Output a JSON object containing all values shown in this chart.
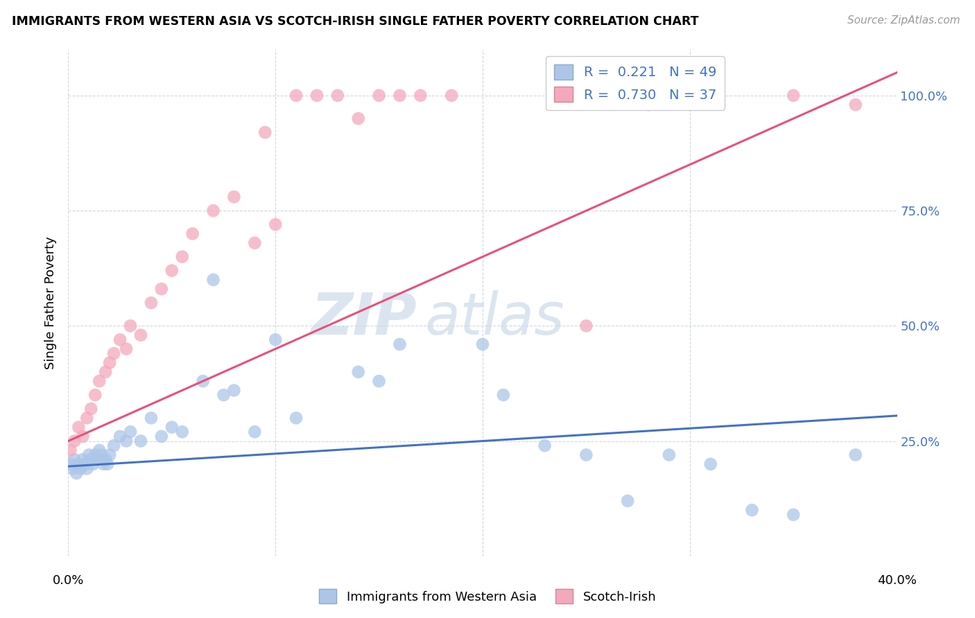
{
  "title": "IMMIGRANTS FROM WESTERN ASIA VS SCOTCH-IRISH SINGLE FATHER POVERTY CORRELATION CHART",
  "source": "Source: ZipAtlas.com",
  "ylabel": "Single Father Poverty",
  "xlim": [
    0.0,
    0.4
  ],
  "ylim": [
    0.0,
    1.1
  ],
  "blue_color": "#adc6e8",
  "pink_color": "#f4a8bc",
  "blue_line_color": "#4472c4",
  "pink_line_color": "#e8507a",
  "watermark_zip": "ZIP",
  "watermark_atlas": "atlas",
  "legend_blue_label": "R =  0.221   N = 49",
  "legend_pink_label": "R =  0.730   N = 37",
  "legend_label_blue": "Immigrants from Western Asia",
  "legend_label_pink": "Scotch-Irish",
  "blue_line_x0": 0.0,
  "blue_line_y0": 0.195,
  "blue_line_x1": 0.4,
  "blue_line_y1": 0.305,
  "pink_line_x0": 0.0,
  "pink_line_y0": 0.25,
  "pink_line_x1": 0.4,
  "pink_line_y1": 1.05,
  "blue_scatter_x": [
    0.001,
    0.002,
    0.003,
    0.004,
    0.005,
    0.006,
    0.007,
    0.008,
    0.009,
    0.01,
    0.011,
    0.012,
    0.013,
    0.014,
    0.015,
    0.016,
    0.017,
    0.018,
    0.019,
    0.02,
    0.022,
    0.025,
    0.028,
    0.03,
    0.035,
    0.04,
    0.045,
    0.05,
    0.055,
    0.065,
    0.07,
    0.075,
    0.08,
    0.09,
    0.1,
    0.11,
    0.14,
    0.15,
    0.16,
    0.2,
    0.21,
    0.23,
    0.25,
    0.27,
    0.29,
    0.31,
    0.33,
    0.35,
    0.38
  ],
  "blue_scatter_y": [
    0.2,
    0.19,
    0.21,
    0.18,
    0.2,
    0.19,
    0.21,
    0.2,
    0.19,
    0.22,
    0.21,
    0.2,
    0.22,
    0.21,
    0.23,
    0.22,
    0.2,
    0.21,
    0.2,
    0.22,
    0.24,
    0.26,
    0.25,
    0.27,
    0.25,
    0.3,
    0.26,
    0.28,
    0.27,
    0.38,
    0.6,
    0.35,
    0.36,
    0.27,
    0.47,
    0.3,
    0.4,
    0.38,
    0.46,
    0.46,
    0.35,
    0.24,
    0.22,
    0.12,
    0.22,
    0.2,
    0.1,
    0.09,
    0.22
  ],
  "pink_scatter_x": [
    0.001,
    0.003,
    0.005,
    0.007,
    0.009,
    0.011,
    0.013,
    0.015,
    0.018,
    0.02,
    0.022,
    0.025,
    0.028,
    0.03,
    0.035,
    0.04,
    0.045,
    0.05,
    0.055,
    0.06,
    0.07,
    0.08,
    0.09,
    0.095,
    0.1,
    0.11,
    0.12,
    0.13,
    0.14,
    0.15,
    0.16,
    0.17,
    0.185,
    0.25,
    0.28,
    0.35,
    0.38
  ],
  "pink_scatter_y": [
    0.23,
    0.25,
    0.28,
    0.26,
    0.3,
    0.32,
    0.35,
    0.38,
    0.4,
    0.42,
    0.44,
    0.47,
    0.45,
    0.5,
    0.48,
    0.55,
    0.58,
    0.62,
    0.65,
    0.7,
    0.75,
    0.78,
    0.68,
    0.92,
    0.72,
    1.0,
    1.0,
    1.0,
    0.95,
    1.0,
    1.0,
    1.0,
    1.0,
    0.5,
    0.98,
    1.0,
    0.98
  ]
}
